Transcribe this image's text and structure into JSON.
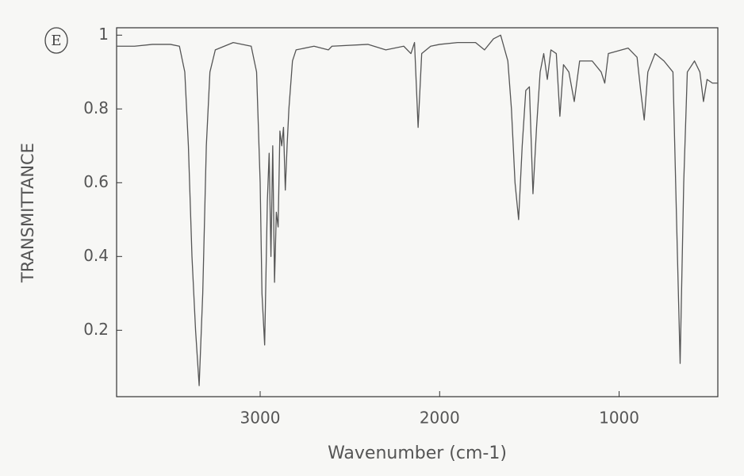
{
  "chart_data": {
    "type": "line",
    "annotation": "E",
    "xlabel": "Wavenumber (cm-1)",
    "ylabel": "TRANSMITTANCE",
    "x": [
      3800,
      3700,
      3600,
      3500,
      3450,
      3420,
      3400,
      3380,
      3360,
      3340,
      3320,
      3300,
      3280,
      3250,
      3150,
      3050,
      3020,
      3000,
      2990,
      2975,
      2960,
      2950,
      2940,
      2930,
      2920,
      2910,
      2900,
      2890,
      2880,
      2870,
      2860,
      2850,
      2840,
      2820,
      2800,
      2700,
      2620,
      2600,
      2400,
      2300,
      2200,
      2160,
      2140,
      2120,
      2100,
      2050,
      2000,
      1900,
      1800,
      1750,
      1700,
      1660,
      1620,
      1600,
      1580,
      1560,
      1540,
      1520,
      1500,
      1480,
      1460,
      1440,
      1420,
      1400,
      1380,
      1350,
      1330,
      1310,
      1280,
      1250,
      1220,
      1150,
      1100,
      1080,
      1060,
      950,
      900,
      880,
      860,
      840,
      800,
      750,
      700,
      680,
      660,
      640,
      620,
      580,
      550,
      530,
      510,
      480,
      450
    ],
    "values": [
      0.97,
      0.97,
      0.975,
      0.975,
      0.97,
      0.9,
      0.7,
      0.4,
      0.2,
      0.05,
      0.3,
      0.7,
      0.9,
      0.96,
      0.98,
      0.97,
      0.9,
      0.6,
      0.3,
      0.16,
      0.55,
      0.68,
      0.4,
      0.7,
      0.33,
      0.52,
      0.48,
      0.74,
      0.7,
      0.75,
      0.58,
      0.7,
      0.8,
      0.93,
      0.96,
      0.97,
      0.96,
      0.97,
      0.975,
      0.96,
      0.97,
      0.95,
      0.98,
      0.75,
      0.95,
      0.97,
      0.975,
      0.98,
      0.98,
      0.96,
      0.99,
      1.0,
      0.93,
      0.8,
      0.6,
      0.5,
      0.7,
      0.85,
      0.86,
      0.57,
      0.75,
      0.9,
      0.95,
      0.88,
      0.96,
      0.95,
      0.78,
      0.92,
      0.9,
      0.82,
      0.93,
      0.93,
      0.9,
      0.87,
      0.95,
      0.965,
      0.94,
      0.85,
      0.77,
      0.9,
      0.95,
      0.93,
      0.9,
      0.5,
      0.11,
      0.6,
      0.9,
      0.93,
      0.9,
      0.82,
      0.88,
      0.87,
      0.87
    ],
    "color": "#555555",
    "xlim": [
      3800,
      450
    ],
    "xticks": [
      3000,
      2000,
      1000
    ],
    "ylim": [
      0.02,
      1.02
    ],
    "yticks": [
      0.2,
      0.4,
      0.6,
      0.8,
      1
    ],
    "grid": false
  }
}
